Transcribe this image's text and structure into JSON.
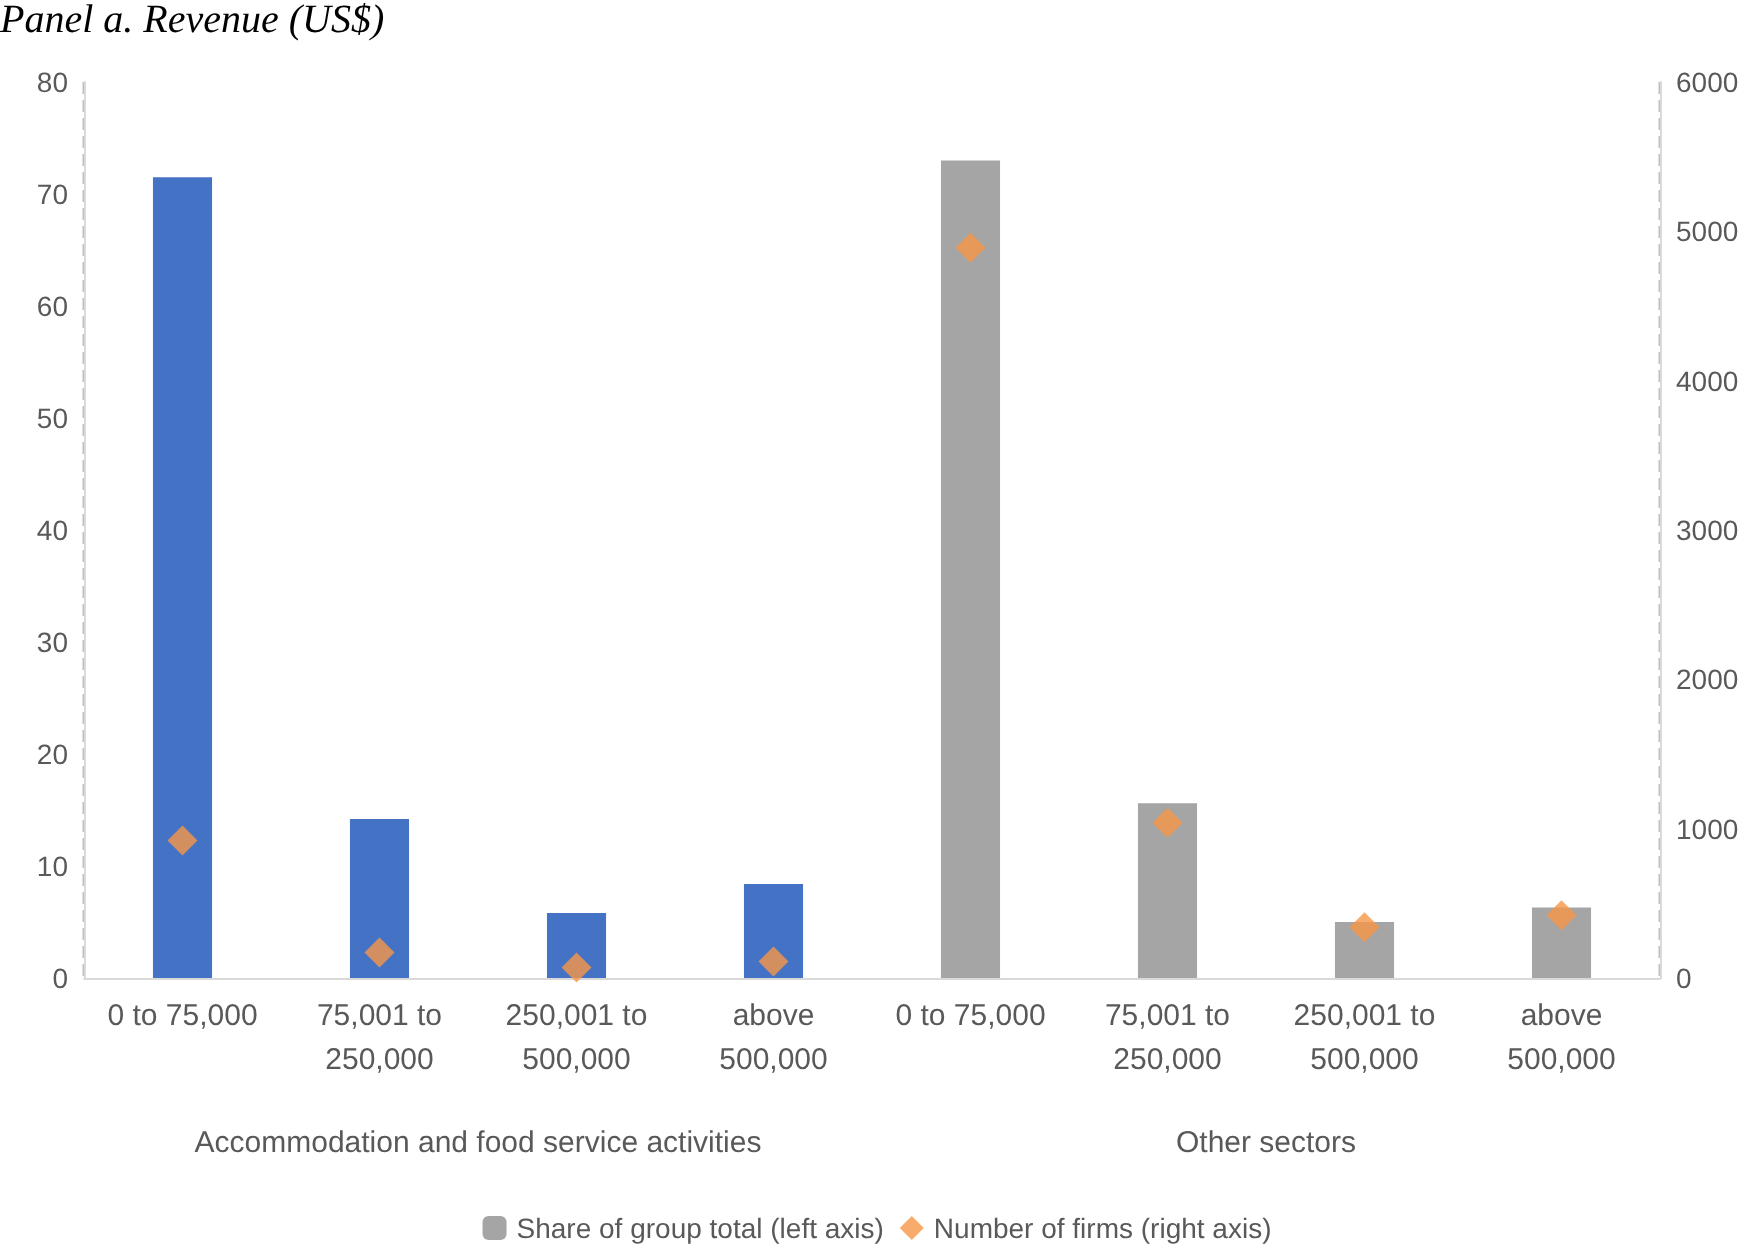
{
  "chart_data": {
    "type": "bar",
    "title": "Panel a. Revenue (US$)",
    "categories": [
      "0 to 75,000",
      "75,001 to\n250,000",
      "250,001 to\n500,000",
      "above\n500,000",
      "0 to 75,000",
      "75,001 to\n250,000",
      "250,001 to\n500,000",
      "above\n500,000"
    ],
    "series": [
      {
        "name": "Share of group total (left axis)",
        "colors": [
          "#4472c4",
          "#4472c4",
          "#4472c4",
          "#4472c4",
          "#a5a5a5",
          "#a5a5a5",
          "#a5a5a5",
          "#a5a5a5"
        ],
        "values": [
          71.5,
          14.2,
          5.8,
          8.4,
          73.0,
          15.6,
          5.0,
          6.3
        ]
      },
      {
        "name": "Number of firms (right axis)",
        "type": "scatter",
        "axis": "y2",
        "color": "#f79646",
        "marker": "diamond",
        "values": [
          920,
          170,
          70,
          110,
          4890,
          1040,
          340,
          420
        ]
      }
    ],
    "annotations": [
      "Accommodation and food service activities",
      "Other sectors"
    ],
    "ylim": [
      0,
      80
    ],
    "yticks": [
      0,
      10,
      20,
      30,
      40,
      50,
      60,
      70,
      80
    ],
    "y2lim": [
      0,
      6000
    ],
    "y2ticks": [
      0,
      1000,
      2000,
      3000,
      4000,
      5000,
      6000
    ],
    "grid": false,
    "legend": "bottom"
  }
}
